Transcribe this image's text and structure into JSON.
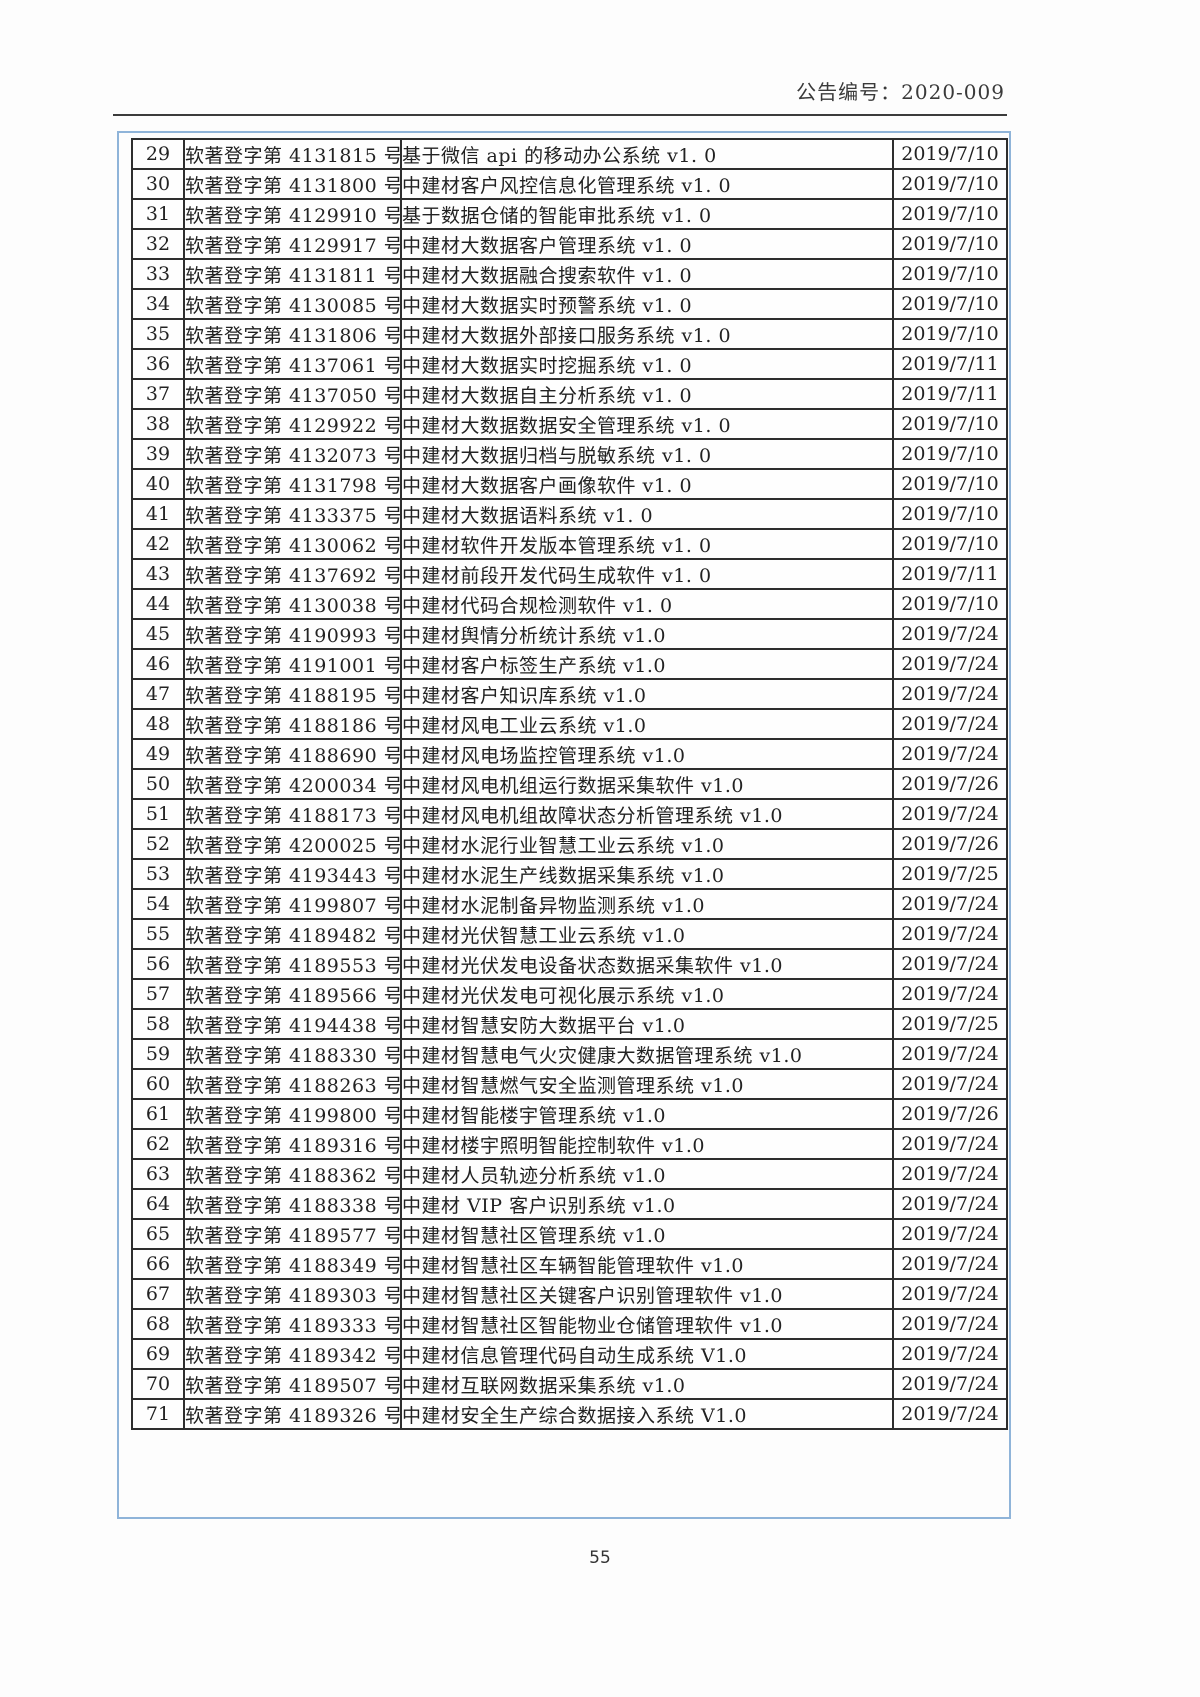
{
  "header": {
    "notice_number_label": "公告编号：2020-009"
  },
  "footer": {
    "page_number": "55"
  },
  "table": {
    "rows": [
      {
        "no": "29",
        "reg": "软著登字第 4131815 号",
        "name": "基于微信 api 的移动办公系统 v1. 0",
        "date": "2019/7/10"
      },
      {
        "no": "30",
        "reg": "软著登字第 4131800 号",
        "name": "中建材客户风控信息化管理系统 v1. 0",
        "date": "2019/7/10"
      },
      {
        "no": "31",
        "reg": "软著登字第 4129910 号",
        "name": "基于数据仓储的智能审批系统 v1. 0",
        "date": "2019/7/10"
      },
      {
        "no": "32",
        "reg": "软著登字第 4129917 号",
        "name": "中建材大数据客户管理系统 v1. 0",
        "date": "2019/7/10"
      },
      {
        "no": "33",
        "reg": "软著登字第 4131811 号",
        "name": "中建材大数据融合搜索软件 v1. 0",
        "date": "2019/7/10"
      },
      {
        "no": "34",
        "reg": "软著登字第 4130085 号",
        "name": "中建材大数据实时预警系统 v1. 0",
        "date": "2019/7/10"
      },
      {
        "no": "35",
        "reg": "软著登字第 4131806 号",
        "name": "中建材大数据外部接口服务系统 v1. 0",
        "date": "2019/7/10"
      },
      {
        "no": "36",
        "reg": "软著登字第 4137061 号",
        "name": "中建材大数据实时挖掘系统 v1. 0",
        "date": "2019/7/11"
      },
      {
        "no": "37",
        "reg": "软著登字第 4137050 号",
        "name": "中建材大数据自主分析系统 v1. 0",
        "date": "2019/7/11"
      },
      {
        "no": "38",
        "reg": "软著登字第 4129922 号",
        "name": "中建材大数据数据安全管理系统 v1. 0",
        "date": "2019/7/10"
      },
      {
        "no": "39",
        "reg": "软著登字第 4132073 号",
        "name": "中建材大数据归档与脱敏系统 v1. 0",
        "date": "2019/7/10"
      },
      {
        "no": "40",
        "reg": "软著登字第 4131798 号",
        "name": "中建材大数据客户画像软件 v1. 0",
        "date": "2019/7/10"
      },
      {
        "no": "41",
        "reg": "软著登字第 4133375 号",
        "name": "中建材大数据语料系统 v1. 0",
        "date": "2019/7/10"
      },
      {
        "no": "42",
        "reg": "软著登字第 4130062 号",
        "name": "中建材软件开发版本管理系统 v1. 0",
        "date": "2019/7/10"
      },
      {
        "no": "43",
        "reg": "软著登字第 4137692 号",
        "name": "中建材前段开发代码生成软件 v1. 0",
        "date": "2019/7/11"
      },
      {
        "no": "44",
        "reg": "软著登字第 4130038 号",
        "name": "中建材代码合规检测软件 v1. 0",
        "date": "2019/7/10"
      },
      {
        "no": "45",
        "reg": "软著登字第 4190993 号",
        "name": "中建材舆情分析统计系统 v1.0",
        "date": "2019/7/24"
      },
      {
        "no": "46",
        "reg": "软著登字第 4191001 号",
        "name": "中建材客户标签生产系统 v1.0",
        "date": "2019/7/24"
      },
      {
        "no": "47",
        "reg": "软著登字第 4188195 号",
        "name": "中建材客户知识库系统 v1.0",
        "date": "2019/7/24"
      },
      {
        "no": "48",
        "reg": "软著登字第 4188186 号",
        "name": "中建材风电工业云系统 v1.0",
        "date": "2019/7/24"
      },
      {
        "no": "49",
        "reg": "软著登字第 4188690 号",
        "name": "中建材风电场监控管理系统 v1.0",
        "date": "2019/7/24"
      },
      {
        "no": "50",
        "reg": "软著登字第 4200034 号",
        "name": "中建材风电机组运行数据采集软件 v1.0",
        "date": "2019/7/26"
      },
      {
        "no": "51",
        "reg": "软著登字第 4188173 号",
        "name": "中建材风电机组故障状态分析管理系统 v1.0",
        "date": "2019/7/24"
      },
      {
        "no": "52",
        "reg": "软著登字第 4200025 号",
        "name": "中建材水泥行业智慧工业云系统 v1.0",
        "date": "2019/7/26"
      },
      {
        "no": "53",
        "reg": "软著登字第 4193443 号",
        "name": "中建材水泥生产线数据采集系统 v1.0",
        "date": "2019/7/25"
      },
      {
        "no": "54",
        "reg": "软著登字第 4199807 号",
        "name": "中建材水泥制备异物监测系统 v1.0",
        "date": "2019/7/24"
      },
      {
        "no": "55",
        "reg": "软著登字第 4189482 号",
        "name": "中建材光伏智慧工业云系统 v1.0",
        "date": "2019/7/24"
      },
      {
        "no": "56",
        "reg": "软著登字第 4189553 号",
        "name": "中建材光伏发电设备状态数据采集软件 v1.0",
        "date": "2019/7/24"
      },
      {
        "no": "57",
        "reg": "软著登字第 4189566 号",
        "name": "中建材光伏发电可视化展示系统 v1.0",
        "date": "2019/7/24"
      },
      {
        "no": "58",
        "reg": "软著登字第 4194438 号",
        "name": "中建材智慧安防大数据平台 v1.0",
        "date": "2019/7/25"
      },
      {
        "no": "59",
        "reg": "软著登字第 4188330 号",
        "name": "中建材智慧电气火灾健康大数据管理系统 v1.0",
        "date": "2019/7/24"
      },
      {
        "no": "60",
        "reg": "软著登字第 4188263 号",
        "name": "中建材智慧燃气安全监测管理系统 v1.0",
        "date": "2019/7/24"
      },
      {
        "no": "61",
        "reg": "软著登字第 4199800 号",
        "name": "中建材智能楼宇管理系统 v1.0",
        "date": "2019/7/26"
      },
      {
        "no": "62",
        "reg": "软著登字第 4189316 号",
        "name": "中建材楼宇照明智能控制软件 v1.0",
        "date": "2019/7/24"
      },
      {
        "no": "63",
        "reg": "软著登字第 4188362 号",
        "name": "中建材人员轨迹分析系统 v1.0",
        "date": "2019/7/24"
      },
      {
        "no": "64",
        "reg": "软著登字第 4188338 号",
        "name": "中建材 VIP 客户识别系统 v1.0",
        "date": "2019/7/24"
      },
      {
        "no": "65",
        "reg": "软著登字第 4189577 号",
        "name": "中建材智慧社区管理系统 v1.0",
        "date": "2019/7/24"
      },
      {
        "no": "66",
        "reg": "软著登字第 4188349 号",
        "name": "中建材智慧社区车辆智能管理软件 v1.0",
        "date": "2019/7/24"
      },
      {
        "no": "67",
        "reg": "软著登字第 4189303 号",
        "name": "中建材智慧社区关键客户识别管理软件 v1.0",
        "date": "2019/7/24"
      },
      {
        "no": "68",
        "reg": "软著登字第 4189333 号",
        "name": "中建材智慧社区智能物业仓储管理软件 v1.0",
        "date": "2019/7/24"
      },
      {
        "no": "69",
        "reg": "软著登字第 4189342 号",
        "name": "中建材信息管理代码自动生成系统 V1.0",
        "date": "2019/7/24"
      },
      {
        "no": "70",
        "reg": "软著登字第 4189507 号",
        "name": "中建材互联网数据采集系统 v1.0",
        "date": "2019/7/24"
      },
      {
        "no": "71",
        "reg": "软著登字第 4189326 号",
        "name": "中建材安全生产综合数据接入系统 V1.0",
        "date": "2019/7/24"
      }
    ]
  }
}
